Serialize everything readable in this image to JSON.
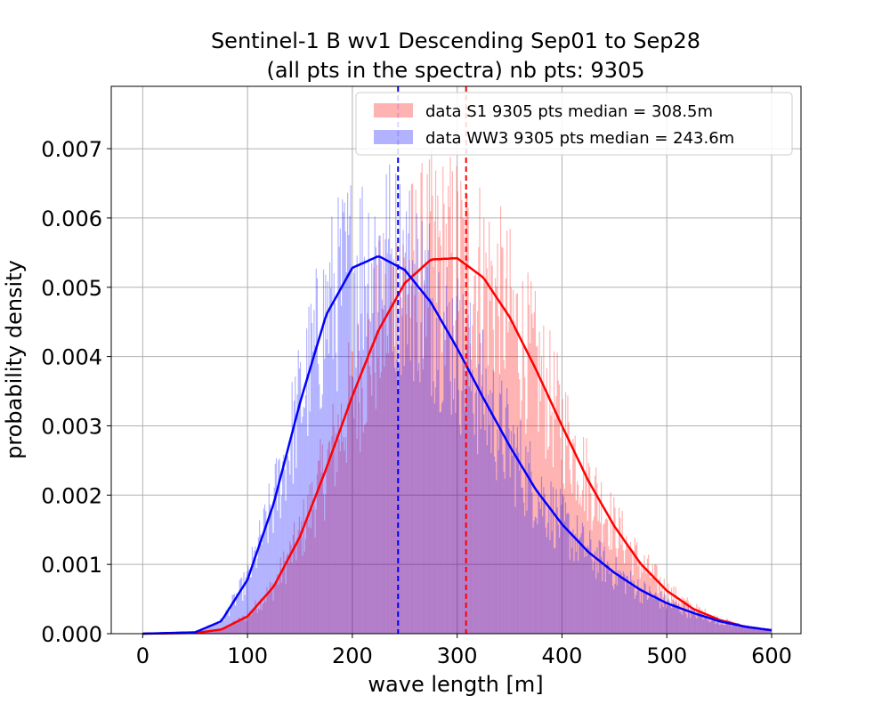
{
  "chart_data": {
    "type": "bar",
    "title_lines": [
      "Sentinel-1 B wv1 Descending Sep01 to Sep28",
      "(all pts in the spectra) nb pts: 9305"
    ],
    "xlabel": "wave length [m]",
    "ylabel": "probability density",
    "xlim": [
      -30,
      628
    ],
    "ylim": [
      0,
      0.0079
    ],
    "x_ticks": [
      0,
      100,
      200,
      300,
      400,
      500,
      600
    ],
    "x_tick_labels": [
      "0",
      "100",
      "200",
      "300",
      "400",
      "500",
      "600"
    ],
    "y_ticks": [
      0,
      0.001,
      0.002,
      0.003,
      0.004,
      0.005,
      0.006,
      0.007
    ],
    "y_tick_labels": [
      "0.000",
      "0.001",
      "0.002",
      "0.003",
      "0.004",
      "0.005",
      "0.006",
      "0.007"
    ],
    "grid": true,
    "legend_position": "top-right",
    "histogram_bin_width": 1,
    "series": [
      {
        "name": "data S1 9305 pts median = 308.5m",
        "kind": "histogram",
        "color": "#ff0000",
        "alpha": 0.3,
        "x_range": [
          50,
          600
        ],
        "fit": "lognormal",
        "fit_mode": 300,
        "fit_peak": 0.00542,
        "median": 308.5
      },
      {
        "name": "data WW3 9305 pts median = 243.6m",
        "kind": "histogram",
        "color": "#0000ff",
        "alpha": 0.3,
        "x_range": [
          50,
          600
        ],
        "fit": "lognormal",
        "fit_mode": 230,
        "fit_peak": 0.00546,
        "median": 243.6
      }
    ],
    "fit_curves": [
      {
        "series": 0,
        "color": "#ff0000",
        "x_range": [
          0,
          600
        ],
        "points": [
          [
            0,
            0
          ],
          [
            50,
            1e-05
          ],
          [
            75,
            6e-05
          ],
          [
            100,
            0.00025
          ],
          [
            125,
            0.00068
          ],
          [
            150,
            0.0014
          ],
          [
            175,
            0.00238
          ],
          [
            200,
            0.00343
          ],
          [
            225,
            0.00438
          ],
          [
            250,
            0.00506
          ],
          [
            275,
            0.0054
          ],
          [
            300,
            0.00542
          ],
          [
            325,
            0.00514
          ],
          [
            350,
            0.00457
          ],
          [
            375,
            0.00382
          ],
          [
            400,
            0.003
          ],
          [
            425,
            0.00221
          ],
          [
            450,
            0.00155
          ],
          [
            475,
            0.00101
          ],
          [
            500,
            0.00062
          ],
          [
            525,
            0.00036
          ],
          [
            550,
            0.0002
          ],
          [
            575,
            0.0001
          ],
          [
            600,
            5e-05
          ]
        ]
      },
      {
        "series": 1,
        "color": "#0000ff",
        "x_range": [
          0,
          600
        ],
        "points": [
          [
            0,
            0
          ],
          [
            50,
            2e-05
          ],
          [
            75,
            0.00018
          ],
          [
            100,
            0.00078
          ],
          [
            125,
            0.00188
          ],
          [
            150,
            0.00333
          ],
          [
            175,
            0.0046
          ],
          [
            200,
            0.00528
          ],
          [
            225,
            0.00545
          ],
          [
            250,
            0.00525
          ],
          [
            275,
            0.00478
          ],
          [
            300,
            0.00412
          ],
          [
            325,
            0.0034
          ],
          [
            350,
            0.00271
          ],
          [
            375,
            0.00208
          ],
          [
            400,
            0.00158
          ],
          [
            425,
            0.00118
          ],
          [
            450,
            0.00088
          ],
          [
            475,
            0.00063
          ],
          [
            500,
            0.00044
          ],
          [
            525,
            0.0003
          ],
          [
            550,
            0.00018
          ],
          [
            575,
            0.0001
          ],
          [
            600,
            5e-05
          ]
        ]
      }
    ],
    "median_lines": [
      {
        "x": 308.5,
        "color": "#ff0000",
        "style": "dashed"
      },
      {
        "x": 243.6,
        "color": "#0000ff",
        "style": "dashed"
      }
    ]
  }
}
